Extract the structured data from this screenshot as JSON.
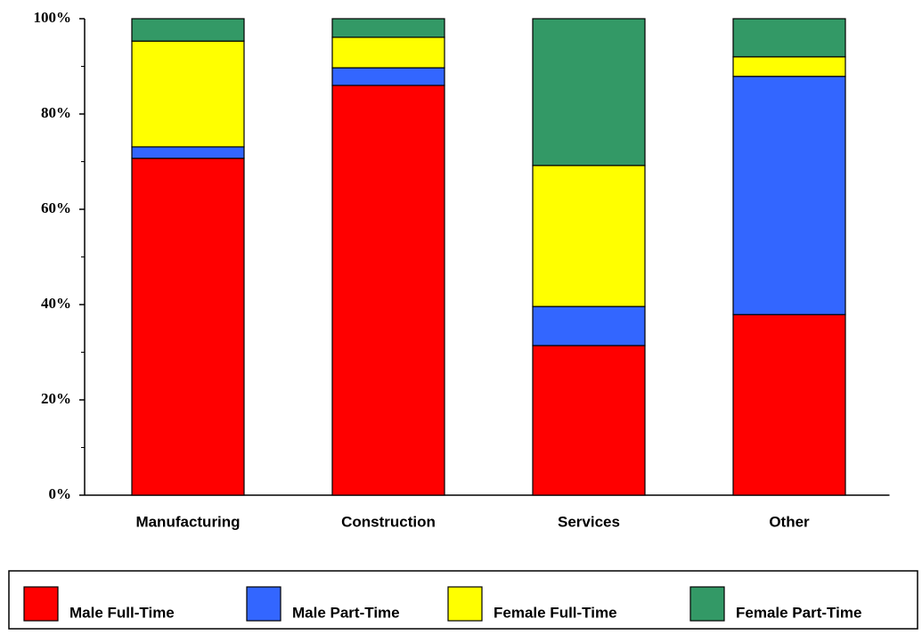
{
  "chart_data": {
    "type": "stacked_bar",
    "categories": [
      "Manufacturing",
      "Construction",
      "Services",
      "Other"
    ],
    "series": [
      {
        "name": "Male Full-Time",
        "color": "#ff0000",
        "values": [
          70.7,
          86.0,
          31.4,
          37.9
        ]
      },
      {
        "name": "Male Part-Time",
        "color": "#3366ff",
        "values": [
          2.4,
          3.7,
          8.2,
          50.0
        ]
      },
      {
        "name": "Female Full-Time",
        "color": "#ffff00",
        "values": [
          22.2,
          6.4,
          29.6,
          4.1
        ]
      },
      {
        "name": "Female Part-Time",
        "color": "#339966",
        "values": [
          4.7,
          3.9,
          30.8,
          8.0
        ]
      }
    ],
    "ylim": [
      0,
      100
    ],
    "yticks": [
      {
        "value": 0,
        "label": "0%"
      },
      {
        "value": 20,
        "label": "20%"
      },
      {
        "value": 40,
        "label": "40%"
      },
      {
        "value": 60,
        "label": "60%"
      },
      {
        "value": 80,
        "label": "80%"
      },
      {
        "value": 100,
        "label": "100%"
      }
    ],
    "yminorticks": [
      10,
      30,
      50,
      70,
      90
    ],
    "grid": false,
    "legend": "bottom"
  }
}
